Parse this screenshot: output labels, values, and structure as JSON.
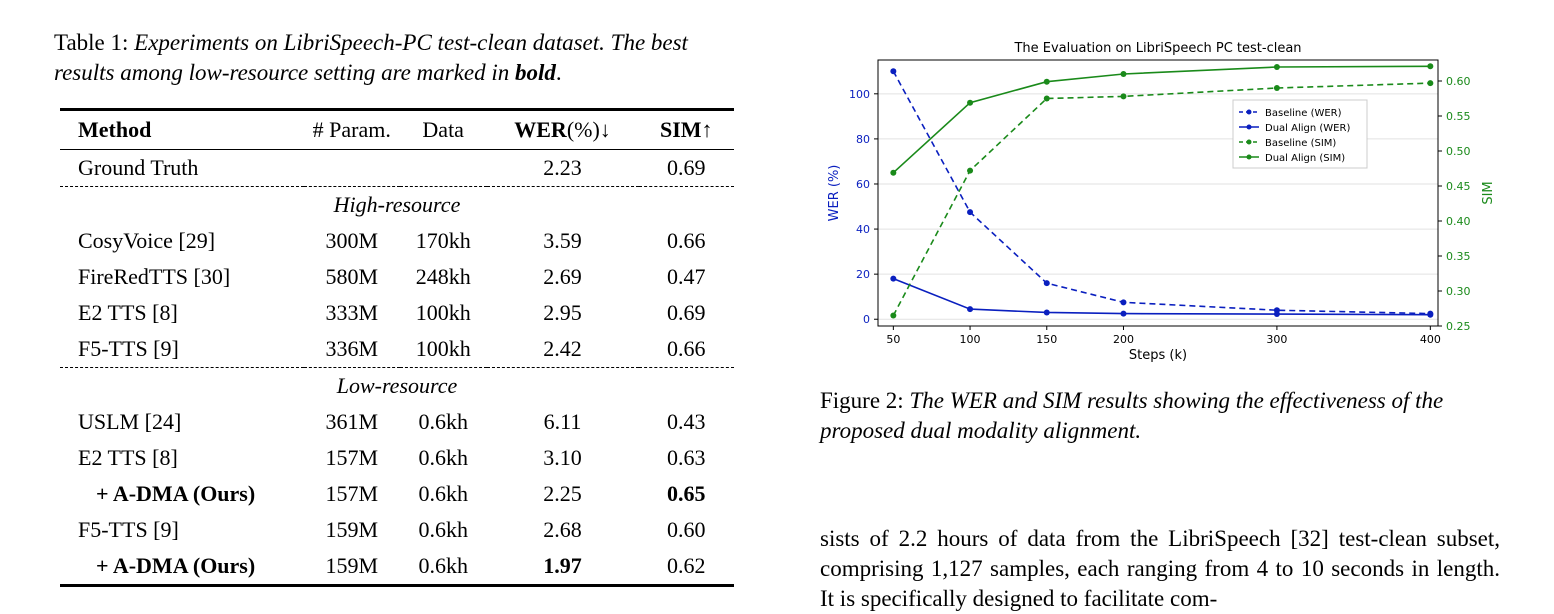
{
  "table": {
    "caption_label": "Table 1:",
    "caption_text_1": "Experiments on LibriSpeech-PC test-clean dataset. The best results among low-resource setting are marked in",
    "caption_bold": "bold",
    "caption_end": ".",
    "headers": {
      "method": "Method",
      "param": "# Param.",
      "data": "Data",
      "wer": "WER",
      "wer_unit": "(%)↓",
      "sim": "SIM↑"
    },
    "ground_truth": {
      "method": "Ground Truth",
      "param": "",
      "data": "",
      "wer": "2.23",
      "sim": "0.69"
    },
    "high_resource_label": "High-resource",
    "high_resource": [
      {
        "method": "CosyVoice [29]",
        "param": "300M",
        "data": "170kh",
        "wer": "3.59",
        "sim": "0.66"
      },
      {
        "method": "FireRedTTS [30]",
        "param": "580M",
        "data": "248kh",
        "wer": "2.69",
        "sim": "0.47"
      },
      {
        "method": "E2 TTS [8]",
        "param": "333M",
        "data": "100kh",
        "wer": "2.95",
        "sim": "0.69"
      },
      {
        "method": "F5-TTS [9]",
        "param": "336M",
        "data": "100kh",
        "wer": "2.42",
        "sim": "0.66"
      }
    ],
    "low_resource_label": "Low-resource",
    "low_resource": [
      {
        "method": "USLM [24]",
        "param": "361M",
        "data": "0.6kh",
        "wer": "6.11",
        "sim": "0.43"
      },
      {
        "method": "E2 TTS [8]",
        "param": "157M",
        "data": "0.6kh",
        "wer": "3.10",
        "sim": "0.63"
      },
      {
        "method": "+ A-DMA (Ours)",
        "param": "157M",
        "data": "0.6kh",
        "wer": "2.25",
        "sim": "0.65"
      },
      {
        "method": "F5-TTS [9]",
        "param": "159M",
        "data": "0.6kh",
        "wer": "2.68",
        "sim": "0.60"
      },
      {
        "method": "+ A-DMA (Ours)",
        "param": "159M",
        "data": "0.6kh",
        "wer": "1.97",
        "sim": "0.62"
      }
    ]
  },
  "figure": {
    "caption_label": "Figure 2:",
    "caption_text": "The WER and SIM results showing the effectiveness of the proposed dual modality alignment."
  },
  "body_text": "sists of 2.2 hours of data from the LibriSpeech [32] test-clean subset, comprising 1,127 samples, each ranging from 4 to 10 seconds in length. It is specifically designed to facilitate com-",
  "colors": {
    "wer": "#0a1fbf",
    "sim": "#1a8a1a"
  },
  "chart_data": {
    "type": "line",
    "title": "The Evaluation on LibriSpeech PC test-clean",
    "xlabel": "Steps (k)",
    "ylabel": "WER (%)",
    "y2label": "SIM",
    "x": [
      50,
      100,
      150,
      200,
      300,
      400
    ],
    "xticks": [
      "50",
      "100",
      "150",
      "200",
      "300",
      "400"
    ],
    "ylim": [
      -3,
      115
    ],
    "yticks": [
      "0",
      "20",
      "40",
      "60",
      "80",
      "100"
    ],
    "y2lim": [
      0.25,
      0.63
    ],
    "y2ticks": [
      "0.25",
      "0.30",
      "0.35",
      "0.40",
      "0.45",
      "0.50",
      "0.55",
      "0.60"
    ],
    "grid": "horizontal",
    "legend_position": "upper-right",
    "series": [
      {
        "name": "Baseline (WER)",
        "axis": "left",
        "style": "dashed",
        "color": "#0a1fbf",
        "values": [
          110,
          47.5,
          16,
          7.5,
          4,
          2.5
        ]
      },
      {
        "name": "Dual Align (WER)",
        "axis": "left",
        "style": "solid",
        "color": "#0a1fbf",
        "values": [
          18,
          4.5,
          3,
          2.5,
          2.3,
          2.0
        ]
      },
      {
        "name": "Baseline (SIM)",
        "axis": "right",
        "style": "dashed",
        "color": "#1a8a1a",
        "values": [
          0.265,
          0.472,
          0.575,
          0.578,
          0.59,
          0.597
        ]
      },
      {
        "name": "Dual Align (SIM)",
        "axis": "right",
        "style": "solid",
        "color": "#1a8a1a",
        "values": [
          0.469,
          0.569,
          0.599,
          0.61,
          0.62,
          0.621
        ]
      }
    ]
  }
}
